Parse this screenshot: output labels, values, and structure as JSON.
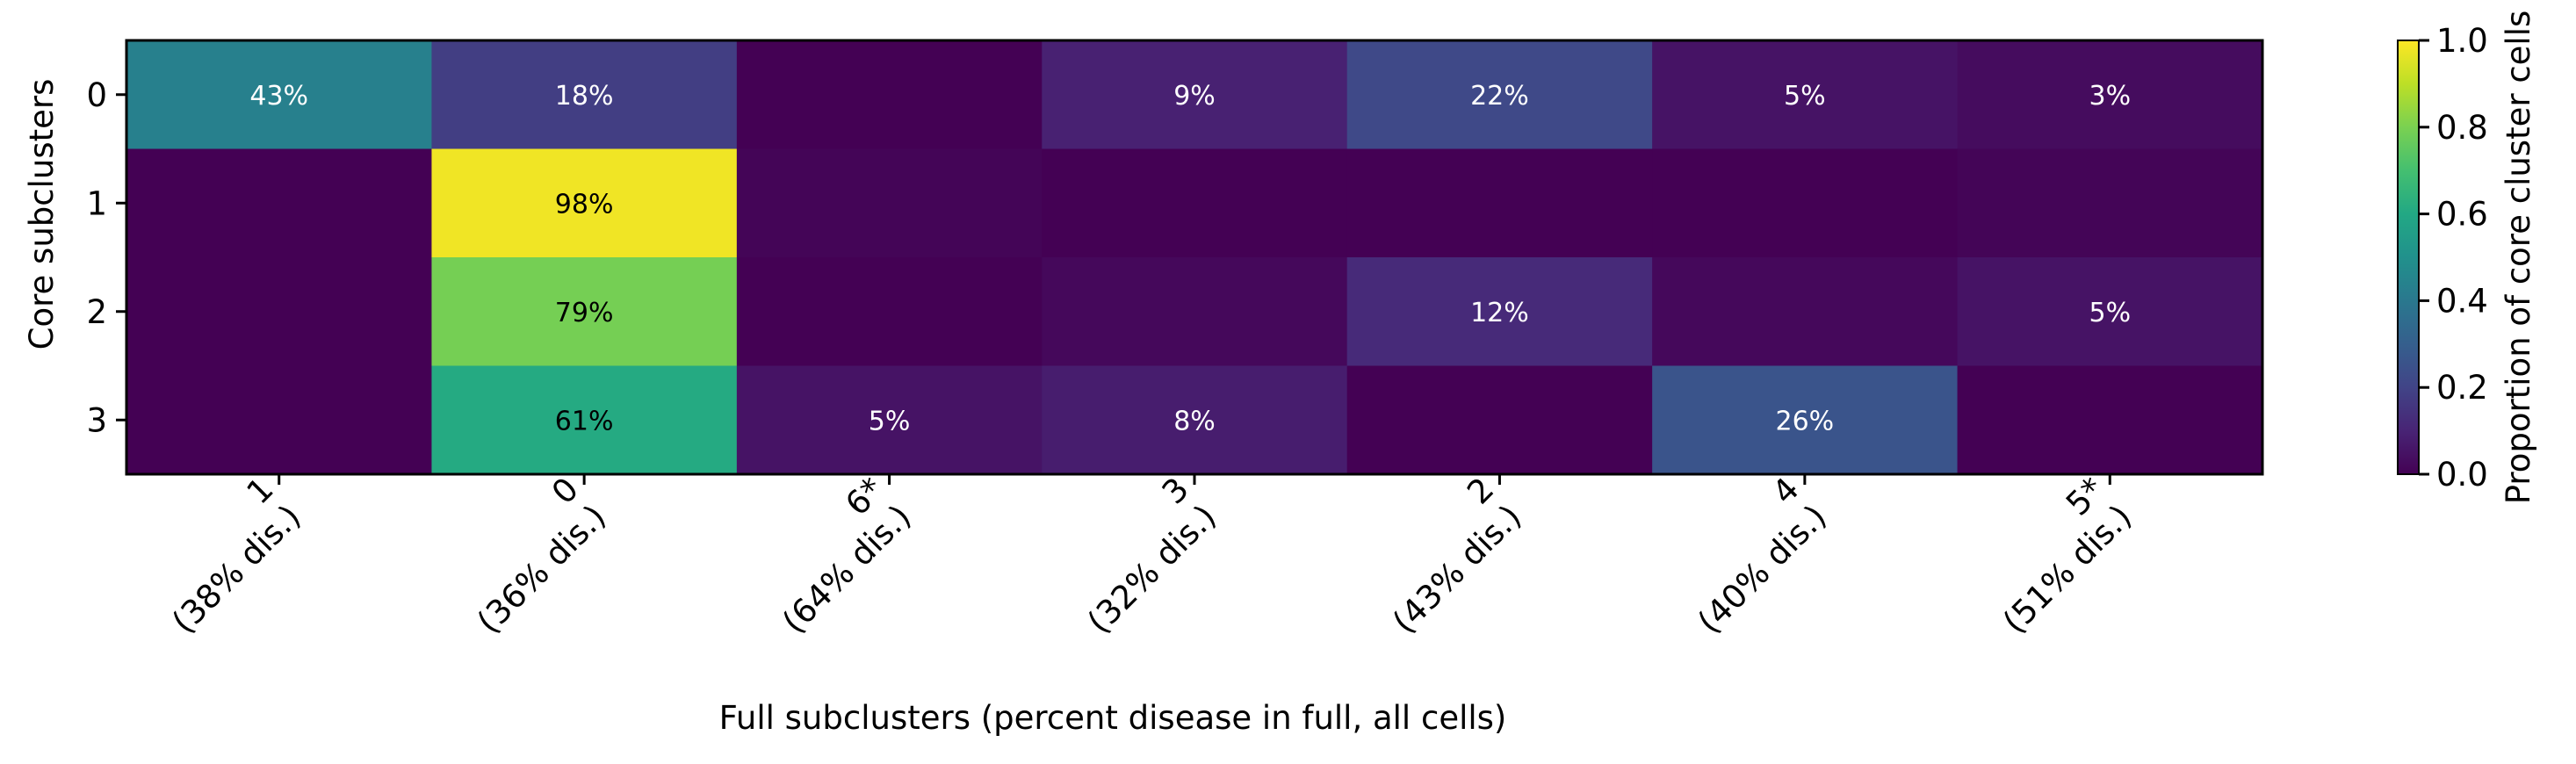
{
  "chart_data": {
    "type": "heatmap",
    "title": "",
    "xlabel": "Full subclusters  (percent disease in full, all cells)",
    "ylabel": "Core subclusters",
    "x_categories": [
      {
        "label": "1",
        "sub": "(38% dis.)"
      },
      {
        "label": "0",
        "sub": "(36% dis.)"
      },
      {
        "label": "6*",
        "sub": "(64% dis.)"
      },
      {
        "label": "3",
        "sub": "(32% dis.)"
      },
      {
        "label": "2",
        "sub": "(43% dis.)"
      },
      {
        "label": "4",
        "sub": "(40% dis.)"
      },
      {
        "label": "5*",
        "sub": "(51% dis.)"
      }
    ],
    "y_categories": [
      "0",
      "1",
      "2",
      "3"
    ],
    "values": [
      [
        0.43,
        0.18,
        0.0,
        0.09,
        0.22,
        0.05,
        0.03
      ],
      [
        0.0,
        0.98,
        0.01,
        0.0,
        0.0,
        0.0,
        0.01
      ],
      [
        0.0,
        0.79,
        0.0,
        0.02,
        0.12,
        0.02,
        0.05
      ],
      [
        0.0,
        0.61,
        0.05,
        0.08,
        0.0,
        0.26,
        0.0
      ]
    ],
    "cell_labels": [
      [
        "43%",
        "18%",
        "",
        "9%",
        "22%",
        "5%",
        "3%"
      ],
      [
        "",
        "98%",
        "",
        "",
        "",
        "",
        ""
      ],
      [
        "",
        "79%",
        "",
        "",
        "12%",
        "",
        "5%"
      ],
      [
        "",
        "61%",
        "5%",
        "8%",
        "",
        "26%",
        ""
      ]
    ],
    "colorbar": {
      "label": "Proportion of core cluster cells",
      "range": [
        0,
        1
      ],
      "ticks": [
        "0.0",
        "0.2",
        "0.4",
        "0.6",
        "0.8",
        "1.0"
      ],
      "colormap": "viridis"
    }
  }
}
